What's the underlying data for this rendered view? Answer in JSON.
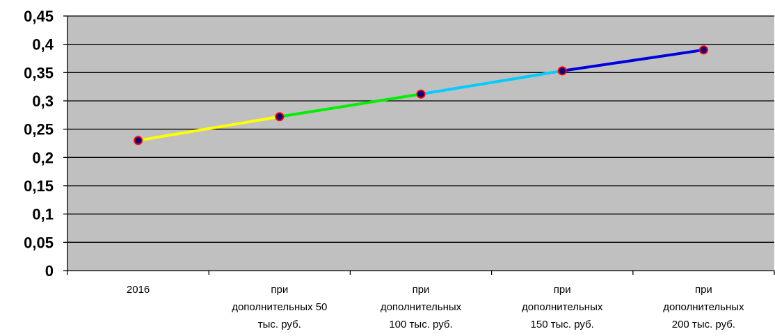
{
  "chart_data": {
    "type": "line",
    "title": "",
    "xlabel": "",
    "ylabel": "",
    "categories": [
      [
        "2016"
      ],
      [
        "при",
        "дополнительных 50",
        "тыс. руб."
      ],
      [
        "при",
        "дополнительных",
        "100 тыс. руб."
      ],
      [
        "при",
        "дополнительных",
        "150 тыс. руб."
      ],
      [
        "при",
        "дополнительных",
        "200 тыс. руб."
      ]
    ],
    "series": [
      {
        "values": [
          0.23,
          0.272,
          0.312,
          0.353,
          0.39
        ]
      }
    ],
    "segment_colors": [
      "#ffff00",
      "#00ee00",
      "#00ccff",
      "#0000dd"
    ],
    "marker_fill": "#000080",
    "marker_stroke": "#ff0000",
    "plot_background": "#c0c0c0",
    "gridline_color": "#000000",
    "grid": true,
    "legend": "none",
    "ylim": [
      0,
      0.45
    ],
    "yticks": [
      "0",
      "0,05",
      "0,1",
      "0,15",
      "0,2",
      "0,25",
      "0,3",
      "0,35",
      "0,4",
      "0,45"
    ]
  }
}
